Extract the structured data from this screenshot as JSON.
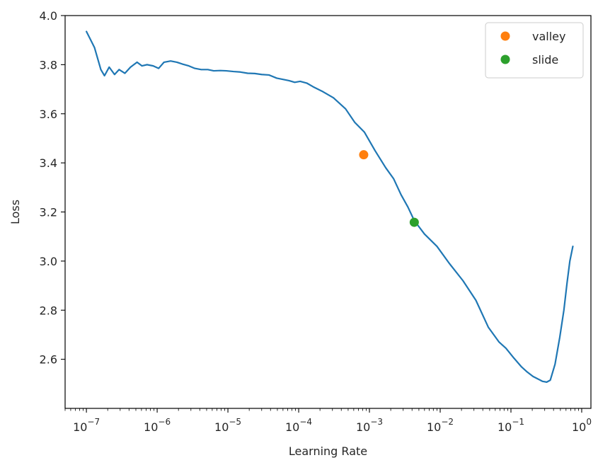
{
  "chart_data": {
    "type": "line",
    "xlabel": "Learning Rate",
    "ylabel": "Loss",
    "xscale": "log",
    "xlim": [
      5e-08,
      1.35
    ],
    "ylim": [
      2.4,
      4.0
    ],
    "yticks": [
      "2.6",
      "2.8",
      "3.0",
      "3.2",
      "3.4",
      "3.6",
      "3.8",
      "4.0"
    ],
    "xticks": [
      {
        "base": "10",
        "exp": "−7"
      },
      {
        "base": "10",
        "exp": "−6"
      },
      {
        "base": "10",
        "exp": "−5"
      },
      {
        "base": "10",
        "exp": "−4"
      },
      {
        "base": "10",
        "exp": "−3"
      },
      {
        "base": "10",
        "exp": "−2"
      },
      {
        "base": "10",
        "exp": "−1"
      },
      {
        "base": "10",
        "exp": "0"
      }
    ],
    "grid": false,
    "legend_position": "top-right",
    "series": [
      {
        "color": "#1f77b4",
        "x": [
          1e-07,
          1.3e-07,
          1.6e-07,
          1.8e-07,
          2.1e-07,
          2.5e-07,
          2.9e-07,
          3.5e-07,
          4.2e-07,
          5.2e-07,
          6.1e-07,
          7.2e-07,
          8.8e-07,
          1.05e-06,
          1.25e-06,
          1.55e-06,
          1.9e-06,
          2.3e-06,
          2.8e-06,
          3.4e-06,
          4.2e-06,
          5.2e-06,
          6.3e-06,
          7.8e-06,
          9.5e-06,
          1.2e-05,
          1.5e-05,
          1.9e-05,
          2.4e-05,
          3e-05,
          3.8e-05,
          4.9e-05,
          6e-05,
          7.3e-05,
          8.8e-05,
          0.000105,
          0.00013,
          0.00016,
          0.00022,
          0.00031,
          0.00046,
          0.00062,
          0.00085,
          0.0012,
          0.0017,
          0.0022,
          0.0028,
          0.0035,
          0.0043,
          0.006,
          0.009,
          0.0135,
          0.021,
          0.032,
          0.048,
          0.068,
          0.085,
          0.11,
          0.14,
          0.17,
          0.205,
          0.24,
          0.28,
          0.32,
          0.36,
          0.42,
          0.49,
          0.56,
          0.62,
          0.68,
          0.75
        ],
        "y": [
          3.935,
          3.87,
          3.78,
          3.755,
          3.79,
          3.76,
          3.78,
          3.765,
          3.79,
          3.81,
          3.795,
          3.8,
          3.795,
          3.785,
          3.81,
          3.815,
          3.81,
          3.802,
          3.795,
          3.785,
          3.78,
          3.78,
          3.775,
          3.776,
          3.775,
          3.772,
          3.77,
          3.765,
          3.764,
          3.76,
          3.758,
          3.745,
          3.74,
          3.735,
          3.728,
          3.732,
          3.725,
          3.71,
          3.69,
          3.665,
          3.62,
          3.565,
          3.525,
          3.45,
          3.38,
          3.335,
          3.27,
          3.22,
          3.165,
          3.11,
          3.06,
          2.99,
          2.92,
          2.84,
          2.73,
          2.67,
          2.645,
          2.605,
          2.57,
          2.548,
          2.53,
          2.52,
          2.51,
          2.507,
          2.515,
          2.58,
          2.69,
          2.8,
          2.91,
          3.0,
          3.06
        ]
      },
      {
        "name": "valley",
        "color": "#ff7f0e",
        "marker": "circle",
        "x": [
          0.00083
        ],
        "y": [
          3.433
        ]
      },
      {
        "name": "slide",
        "color": "#2ca02c",
        "marker": "circle",
        "x": [
          0.0043
        ],
        "y": [
          3.158
        ]
      }
    ]
  }
}
